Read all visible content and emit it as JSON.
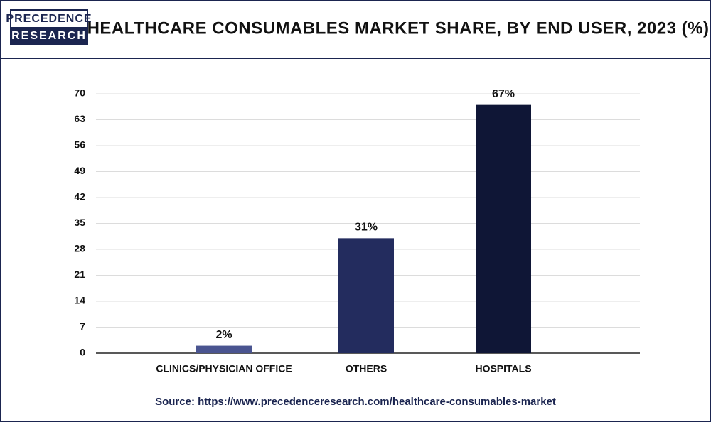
{
  "logo": {
    "line1": "PRECEDENCE",
    "line2": "RESEARCH"
  },
  "chart_data": {
    "type": "bar",
    "title": "HEALTHCARE CONSUMABLES MARKET SHARE, BY END USER, 2023 (%)",
    "categories": [
      "CLINICS/PHYSICIAN OFFICE",
      "OTHERS",
      "HOSPITALS"
    ],
    "values": [
      2,
      31,
      67
    ],
    "value_labels": [
      "2%",
      "31%",
      "67%"
    ],
    "colors": [
      "#4a5490",
      "#232c5e",
      "#0f1636"
    ],
    "ylim": [
      0,
      70
    ],
    "yticks": [
      0,
      7,
      14,
      21,
      28,
      35,
      42,
      49,
      56,
      63,
      70
    ],
    "grid": true,
    "source": "Source: https://www.precedenceresearch.com/healthcare-consumables-market"
  }
}
